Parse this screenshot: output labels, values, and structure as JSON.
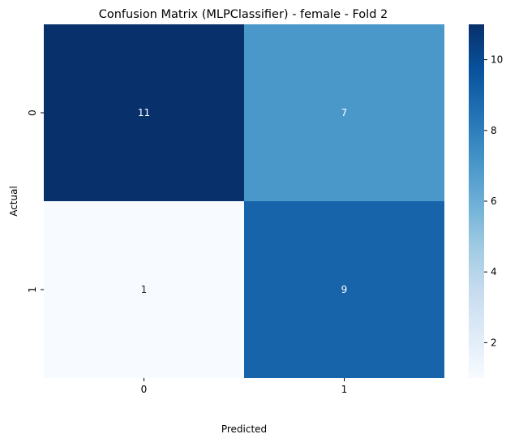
{
  "chart_data": {
    "type": "heatmap",
    "title": "Confusion Matrix (MLPClassifier) - female - Fold 2",
    "xlabel": "Predicted",
    "ylabel": "Actual",
    "x_categories": [
      "0",
      "1"
    ],
    "y_categories": [
      "0",
      "1"
    ],
    "values": [
      [
        11,
        7
      ],
      [
        1,
        9
      ]
    ],
    "annotations": [
      [
        "11",
        "7"
      ],
      [
        "1",
        "9"
      ]
    ],
    "colormap": "Blues",
    "color_range": [
      1,
      11
    ],
    "colorbar": {
      "ticks": [
        2,
        4,
        6,
        8,
        10
      ],
      "tick_labels": [
        "2",
        "4",
        "6",
        "8",
        "10"
      ],
      "placement": "right"
    },
    "grid": false
  }
}
